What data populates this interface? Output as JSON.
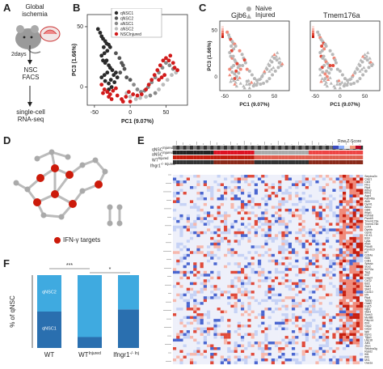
{
  "panels": {
    "a": {
      "letter": "A",
      "global_ischemia": "Global\nischemia",
      "two_days": "2days",
      "nsc_facs": "NSC\nFACS",
      "single_cell": "single-cell\nRNA-seq"
    },
    "b": {
      "letter": "B"
    },
    "c": {
      "letter": "C",
      "legend_naive": "Naive",
      "legend_injured": "Injured",
      "gene1": "Gjb6",
      "gene2": "Tmem176a"
    },
    "d": {
      "letter": "D",
      "legend_ifn": "IFN-γ targets"
    },
    "e": {
      "letter": "E",
      "row1": "qNSC",
      "row2": "aNSC",
      "row3": "WT",
      "row4": "Ifngr1",
      "scale_label": "Row Z-Score",
      "genes": [
        "Serpina3n",
        "Casr1",
        "Cst3",
        "Fth1",
        "Rtp4",
        "Ifitm3",
        "Ifitm1",
        "Aqp4",
        "Fam46a",
        "Aldh",
        "Dynll1",
        "Aldoc",
        "Gjb6",
        "Ifngr1",
        "Psmb8",
        "Psmb9",
        "Tmem176a",
        "Tmem176b",
        "Cd74",
        "Dynlrb",
        "Gzmb",
        "H2-K1",
        "B2m",
        "Ly6a",
        "Ifit3b",
        "Pdcd5",
        "Psmb10",
        "Irf7",
        "Cd24a",
        "Klk6",
        "Cd81",
        "Sptssb",
        "Sox2",
        "Ifi27l2a",
        "Tap1",
        "Ifi47",
        "Casp4",
        "Ccl12",
        "Bst2",
        "Stat1",
        "Stat2",
        "Cxcl10",
        "Irf9",
        "Rtp4",
        "Tapbp",
        "Oasl2",
        "Isg15",
        "Iigp1",
        "Stat3",
        "Socs3",
        "Myd88",
        "Parp14",
        "Ifih1",
        "Gbp2",
        "Gbp3",
        "Igtp",
        "Irgm1",
        "Tgtp1",
        "Usp18",
        "Xaf1",
        "Zbp1",
        "Serpina3g",
        "Rsad2",
        "Ifit1",
        "Ifit3",
        "Mx1",
        "Oas1a"
      ]
    },
    "f": {
      "letter": "F",
      "ylabel": "% of qNSC",
      "sig1": "***",
      "sig2": "*",
      "inside_labels": [
        "qNSC2",
        "qNSC1"
      ]
    }
  },
  "chart_data": [
    {
      "type": "scatter",
      "panel": "B",
      "xlabel": "PC1 (9.07%)",
      "ylabel": "PC3 (1.66%)",
      "xlim": [
        -60,
        80
      ],
      "ylim": [
        -15,
        60
      ],
      "xticks": [
        -50,
        0,
        50
      ],
      "yticks": [
        0,
        50
      ],
      "legend": [
        "qNSC1",
        "qNSC2",
        "aNSC1",
        "aNSC2",
        "NSCInjured"
      ],
      "colors": [
        "#333333",
        "#666666",
        "#999999",
        "#bbbbbb",
        "#cc1111"
      ],
      "series": [
        {
          "name": "qNSC1",
          "color": "#2a2a2a",
          "points": [
            [
              -45,
              48
            ],
            [
              -42,
              45
            ],
            [
              -40,
              42
            ],
            [
              -38,
              40
            ],
            [
              -35,
              38
            ],
            [
              -33,
              36
            ],
            [
              -30,
              35
            ],
            [
              -28,
              33
            ],
            [
              -32,
              30
            ],
            [
              -36,
              28
            ],
            [
              -40,
              26
            ],
            [
              -38,
              22
            ],
            [
              -35,
              20
            ],
            [
              -30,
              18
            ],
            [
              -28,
              16
            ],
            [
              -25,
              14
            ],
            [
              -32,
              12
            ],
            [
              -36,
              10
            ],
            [
              -40,
              8
            ],
            [
              -35,
              5
            ],
            [
              -30,
              3
            ],
            [
              -27,
              6
            ],
            [
              -23,
              10
            ],
            [
              -20,
              12
            ],
            [
              -18,
              8
            ],
            [
              -22,
              4
            ],
            [
              -26,
              0
            ],
            [
              -30,
              -2
            ],
            [
              -33,
              22
            ],
            [
              -37,
              33
            ]
          ]
        },
        {
          "name": "qNSC2",
          "color": "#555555",
          "points": [
            [
              -20,
              28
            ],
            [
              -15,
              24
            ],
            [
              -12,
              20
            ],
            [
              -10,
              18
            ],
            [
              -8,
              15
            ],
            [
              -14,
              12
            ],
            [
              -5,
              8
            ],
            [
              0,
              6
            ]
          ]
        },
        {
          "name": "aNSC1",
          "color": "#888888",
          "points": [
            [
              5,
              2
            ],
            [
              10,
              -2
            ],
            [
              15,
              -4
            ],
            [
              20,
              -3
            ],
            [
              25,
              0
            ],
            [
              30,
              4
            ],
            [
              35,
              8
            ],
            [
              40,
              12
            ],
            [
              45,
              16
            ],
            [
              50,
              20
            ],
            [
              55,
              18
            ],
            [
              60,
              15
            ],
            [
              35,
              -5
            ],
            [
              28,
              -7
            ]
          ]
        },
        {
          "name": "aNSC2",
          "color": "#bbbbbb",
          "points": [
            [
              -5,
              -5
            ],
            [
              0,
              -8
            ],
            [
              8,
              -10
            ],
            [
              14,
              -9
            ],
            [
              22,
              -8
            ],
            [
              40,
              -2
            ],
            [
              46,
              2
            ],
            [
              52,
              6
            ],
            [
              58,
              10
            ],
            [
              64,
              12
            ]
          ]
        },
        {
          "name": "NSCInjured",
          "color": "#d11a1a",
          "points": [
            [
              -40,
              2
            ],
            [
              -36,
              -2
            ],
            [
              -32,
              -4
            ],
            [
              -28,
              -6
            ],
            [
              -24,
              -3
            ],
            [
              -20,
              -1
            ],
            [
              -18,
              -7
            ],
            [
              -12,
              -10
            ],
            [
              -6,
              -8
            ],
            [
              -2,
              -4
            ],
            [
              4,
              -6
            ],
            [
              10,
              -7
            ],
            [
              16,
              -6
            ],
            [
              22,
              -2
            ],
            [
              26,
              2
            ],
            [
              30,
              6
            ],
            [
              34,
              10
            ],
            [
              38,
              14
            ],
            [
              42,
              18
            ],
            [
              46,
              22
            ],
            [
              50,
              24
            ],
            [
              54,
              22
            ],
            [
              56,
              26
            ],
            [
              60,
              20
            ],
            [
              62,
              16
            ],
            [
              66,
              14
            ],
            [
              48,
              10
            ],
            [
              44,
              8
            ],
            [
              40,
              6
            ],
            [
              -38,
              -5
            ],
            [
              -30,
              -8
            ],
            [
              -26,
              -10
            ],
            [
              -10,
              -12
            ],
            [
              0,
              -12
            ]
          ]
        }
      ]
    },
    {
      "type": "bar",
      "panel": "F",
      "stacked": true,
      "categories": [
        "WT",
        "WT^Injured",
        "Ifngr1^-/- Injured"
      ],
      "ylim": [
        0,
        100
      ],
      "series": [
        {
          "name": "qNSC1",
          "color": "#2a6faf",
          "values": [
            50,
            15,
            53
          ]
        },
        {
          "name": "qNSC2",
          "color": "#3faae0",
          "values": [
            50,
            85,
            47
          ]
        }
      ]
    }
  ]
}
